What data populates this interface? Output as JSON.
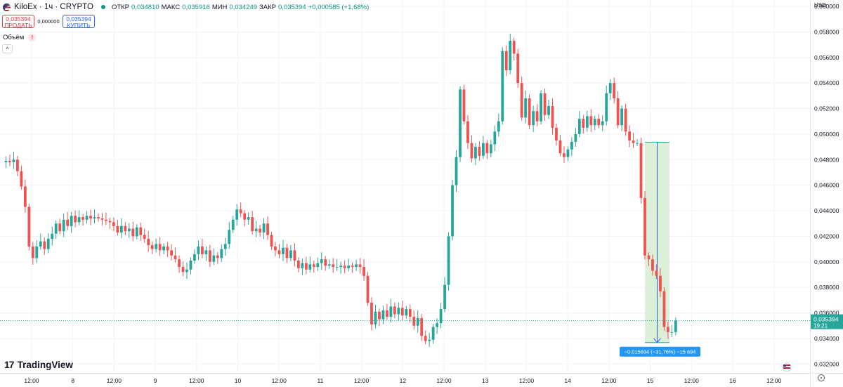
{
  "header": {
    "symbol": "KiloEx · 1ч · CRYPTO",
    "open_label": "ОТКР",
    "open": "0,034810",
    "high_label": "МАКС",
    "high": "0,035916",
    "low_label": "МИН",
    "low": "0,034249",
    "close_label": "ЗАКР",
    "close": "0,035394",
    "change": "+0,000585 (+1,68%)"
  },
  "trade": {
    "sell_price": "0,035394",
    "sell_label": "ПРОДАТЬ",
    "spread": "0,000000",
    "buy_price": "0,035394",
    "buy_label": "КУПИТЬ"
  },
  "volume_label": "Объём",
  "volume_warning": "!",
  "collapse_glyph": "^",
  "brand": "TradingView",
  "brand_mark": "17",
  "currency": "USD",
  "colors": {
    "up": "#26a69a",
    "down": "#ef5350",
    "grid": "#f0f3fa",
    "measure_fill": "#d6ecd2",
    "measure_line": "#2962ff",
    "last_price": "#26a69a"
  },
  "chart_data": {
    "type": "candlestick",
    "title": "KiloEx · 1ч · CRYPTO",
    "ylim": [
      0.0313,
      0.0605
    ],
    "y_ticks": [
      "0,060000",
      "0,058000",
      "0,056000",
      "0,054000",
      "0,052000",
      "0,050000",
      "0,048000",
      "0,046000",
      "0,044000",
      "0,042000",
      "0,040000",
      "0,038000",
      "0,036000",
      "0,034000",
      "0,032000"
    ],
    "y_tick_values": [
      0.06,
      0.058,
      0.056,
      0.054,
      0.052,
      0.05,
      0.048,
      0.046,
      0.044,
      0.042,
      0.04,
      0.038,
      0.036,
      0.034,
      0.032
    ],
    "x_range_hours": [
      -11,
      203
    ],
    "x_ticks": [
      {
        "t": 12,
        "label": "12:00"
      },
      {
        "t": 24,
        "label": "8"
      },
      {
        "t": 36,
        "label": "12:00"
      },
      {
        "t": 48,
        "label": "9"
      },
      {
        "t": 60,
        "label": "12:00"
      },
      {
        "t": 72,
        "label": "10"
      },
      {
        "t": 84,
        "label": "12:00"
      },
      {
        "t": 96,
        "label": "11"
      },
      {
        "t": 108,
        "label": "12:00"
      },
      {
        "t": 120,
        "label": "12"
      },
      {
        "t": 132,
        "label": "12:00"
      },
      {
        "t": 144,
        "label": "13"
      },
      {
        "t": 156,
        "label": "12:00"
      },
      {
        "t": 168,
        "label": "14"
      },
      {
        "t": 180,
        "label": "12:00"
      },
      {
        "t": 192,
        "label": "15"
      },
      {
        "t": 204,
        "label": "12:00"
      },
      {
        "t": 216,
        "label": "16"
      },
      {
        "t": 228,
        "label": "12:00"
      }
    ],
    "last_price": {
      "value": 0.035394,
      "label": "0,035394",
      "countdown": "19:21"
    },
    "measure": {
      "start_t": 191,
      "end_t": 203,
      "start_price": 0.04937,
      "end_price": 0.03368,
      "label": "−0,015694 (−31,76%) −15 694"
    },
    "key_points": [
      [
        0,
        0.0478
      ],
      [
        1,
        0.0479
      ],
      [
        2,
        0.0478
      ],
      [
        3,
        0.048
      ],
      [
        4,
        0.0471
      ],
      [
        5,
        0.0459
      ],
      [
        6,
        0.0443
      ],
      [
        7,
        0.0412
      ],
      [
        8,
        0.0403
      ],
      [
        9,
        0.0412
      ],
      [
        10,
        0.0416
      ],
      [
        11,
        0.041
      ],
      [
        12,
        0.0418
      ],
      [
        13,
        0.0422
      ],
      [
        14,
        0.043
      ],
      [
        15,
        0.0424
      ],
      [
        16,
        0.0433
      ],
      [
        17,
        0.0428
      ],
      [
        18,
        0.0436
      ],
      [
        19,
        0.0431
      ],
      [
        20,
        0.0435
      ],
      [
        21,
        0.0433
      ],
      [
        22,
        0.0436
      ],
      [
        23,
        0.0434
      ],
      [
        24,
        0.0435
      ],
      [
        25,
        0.0434
      ],
      [
        26,
        0.0433
      ],
      [
        27,
        0.0432
      ],
      [
        28,
        0.0431
      ],
      [
        29,
        0.0428
      ],
      [
        30,
        0.0423
      ],
      [
        31,
        0.0428
      ],
      [
        32,
        0.0424
      ],
      [
        33,
        0.0426
      ],
      [
        34,
        0.042
      ],
      [
        35,
        0.0427
      ],
      [
        36,
        0.0421
      ],
      [
        37,
        0.0418
      ],
      [
        38,
        0.0413
      ],
      [
        39,
        0.041
      ],
      [
        40,
        0.0414
      ],
      [
        41,
        0.0409
      ],
      [
        42,
        0.0412
      ],
      [
        43,
        0.0409
      ],
      [
        44,
        0.0405
      ],
      [
        45,
        0.0402
      ],
      [
        46,
        0.0396
      ],
      [
        47,
        0.0392
      ],
      [
        48,
        0.0394
      ],
      [
        49,
        0.0401
      ],
      [
        50,
        0.0406
      ],
      [
        51,
        0.0412
      ],
      [
        52,
        0.0406
      ],
      [
        53,
        0.0409
      ],
      [
        54,
        0.04
      ],
      [
        55,
        0.0405
      ],
      [
        56,
        0.0403
      ],
      [
        57,
        0.041
      ],
      [
        58,
        0.0414
      ],
      [
        59,
        0.0425
      ],
      [
        60,
        0.0433
      ],
      [
        61,
        0.0441
      ],
      [
        62,
        0.0438
      ],
      [
        63,
        0.0433
      ],
      [
        64,
        0.0435
      ],
      [
        65,
        0.0424
      ],
      [
        66,
        0.0426
      ],
      [
        67,
        0.0423
      ],
      [
        68,
        0.043
      ],
      [
        69,
        0.0421
      ],
      [
        70,
        0.0412
      ],
      [
        71,
        0.0409
      ],
      [
        72,
        0.0406
      ],
      [
        73,
        0.0411
      ],
      [
        74,
        0.0403
      ],
      [
        75,
        0.0409
      ],
      [
        76,
        0.0401
      ],
      [
        77,
        0.0395
      ],
      [
        78,
        0.0399
      ],
      [
        79,
        0.0394
      ],
      [
        80,
        0.0398
      ],
      [
        81,
        0.0396
      ],
      [
        82,
        0.0399
      ],
      [
        83,
        0.0402
      ],
      [
        84,
        0.0397
      ],
      [
        85,
        0.0398
      ],
      [
        86,
        0.0396
      ],
      [
        87,
        0.0396
      ],
      [
        88,
        0.0397
      ],
      [
        89,
        0.0395
      ],
      [
        90,
        0.0397
      ],
      [
        91,
        0.0396
      ],
      [
        92,
        0.0398
      ],
      [
        93,
        0.0396
      ],
      [
        94,
        0.0389
      ],
      [
        95,
        0.0368
      ],
      [
        96,
        0.0351
      ],
      [
        97,
        0.0361
      ],
      [
        98,
        0.0355
      ],
      [
        99,
        0.0362
      ],
      [
        100,
        0.0357
      ],
      [
        101,
        0.0365
      ],
      [
        102,
        0.0359
      ],
      [
        103,
        0.0364
      ],
      [
        104,
        0.0358
      ],
      [
        105,
        0.0363
      ],
      [
        106,
        0.0357
      ],
      [
        107,
        0.035
      ],
      [
        108,
        0.0356
      ],
      [
        109,
        0.0342
      ],
      [
        110,
        0.0338
      ],
      [
        111,
        0.0339
      ],
      [
        112,
        0.0349
      ],
      [
        113,
        0.0352
      ],
      [
        114,
        0.0363
      ],
      [
        115,
        0.0382
      ],
      [
        116,
        0.042
      ],
      [
        117,
        0.046
      ],
      [
        118,
        0.0482
      ],
      [
        119,
        0.0535
      ],
      [
        120,
        0.051
      ],
      [
        121,
        0.0493
      ],
      [
        122,
        0.0481
      ],
      [
        123,
        0.049
      ],
      [
        124,
        0.0483
      ],
      [
        125,
        0.0493
      ],
      [
        126,
        0.0485
      ],
      [
        127,
        0.0492
      ],
      [
        128,
        0.0502
      ],
      [
        129,
        0.051
      ],
      [
        130,
        0.0565
      ],
      [
        131,
        0.055
      ],
      [
        132,
        0.0573
      ],
      [
        133,
        0.0563
      ],
      [
        134,
        0.054
      ],
      [
        135,
        0.0513
      ],
      [
        136,
        0.0528
      ],
      [
        137,
        0.0507
      ],
      [
        138,
        0.0518
      ],
      [
        139,
        0.051
      ],
      [
        140,
        0.0532
      ],
      [
        141,
        0.0515
      ],
      [
        142,
        0.0522
      ],
      [
        143,
        0.0505
      ],
      [
        144,
        0.0495
      ],
      [
        145,
        0.0485
      ],
      [
        146,
        0.0482
      ],
      [
        147,
        0.0488
      ],
      [
        148,
        0.0494
      ],
      [
        149,
        0.05
      ],
      [
        150,
        0.0512
      ],
      [
        151,
        0.0505
      ],
      [
        152,
        0.0514
      ],
      [
        153,
        0.0507
      ],
      [
        154,
        0.0512
      ],
      [
        155,
        0.0507
      ],
      [
        156,
        0.051
      ],
      [
        157,
        0.0532
      ],
      [
        158,
        0.054
      ],
      [
        159,
        0.0528
      ],
      [
        160,
        0.0507
      ],
      [
        161,
        0.052
      ],
      [
        162,
        0.0502
      ],
      [
        163,
        0.0495
      ],
      [
        164,
        0.0493
      ],
      [
        165,
        0.0493
      ],
      [
        166,
        0.045
      ],
      [
        167,
        0.0405
      ],
      [
        168,
        0.0402
      ],
      [
        169,
        0.0393
      ],
      [
        170,
        0.0389
      ],
      [
        171,
        0.0377
      ],
      [
        172,
        0.0349
      ],
      [
        173,
        0.0345
      ],
      [
        174,
        0.0345
      ],
      [
        175,
        0.0354
      ]
    ]
  }
}
